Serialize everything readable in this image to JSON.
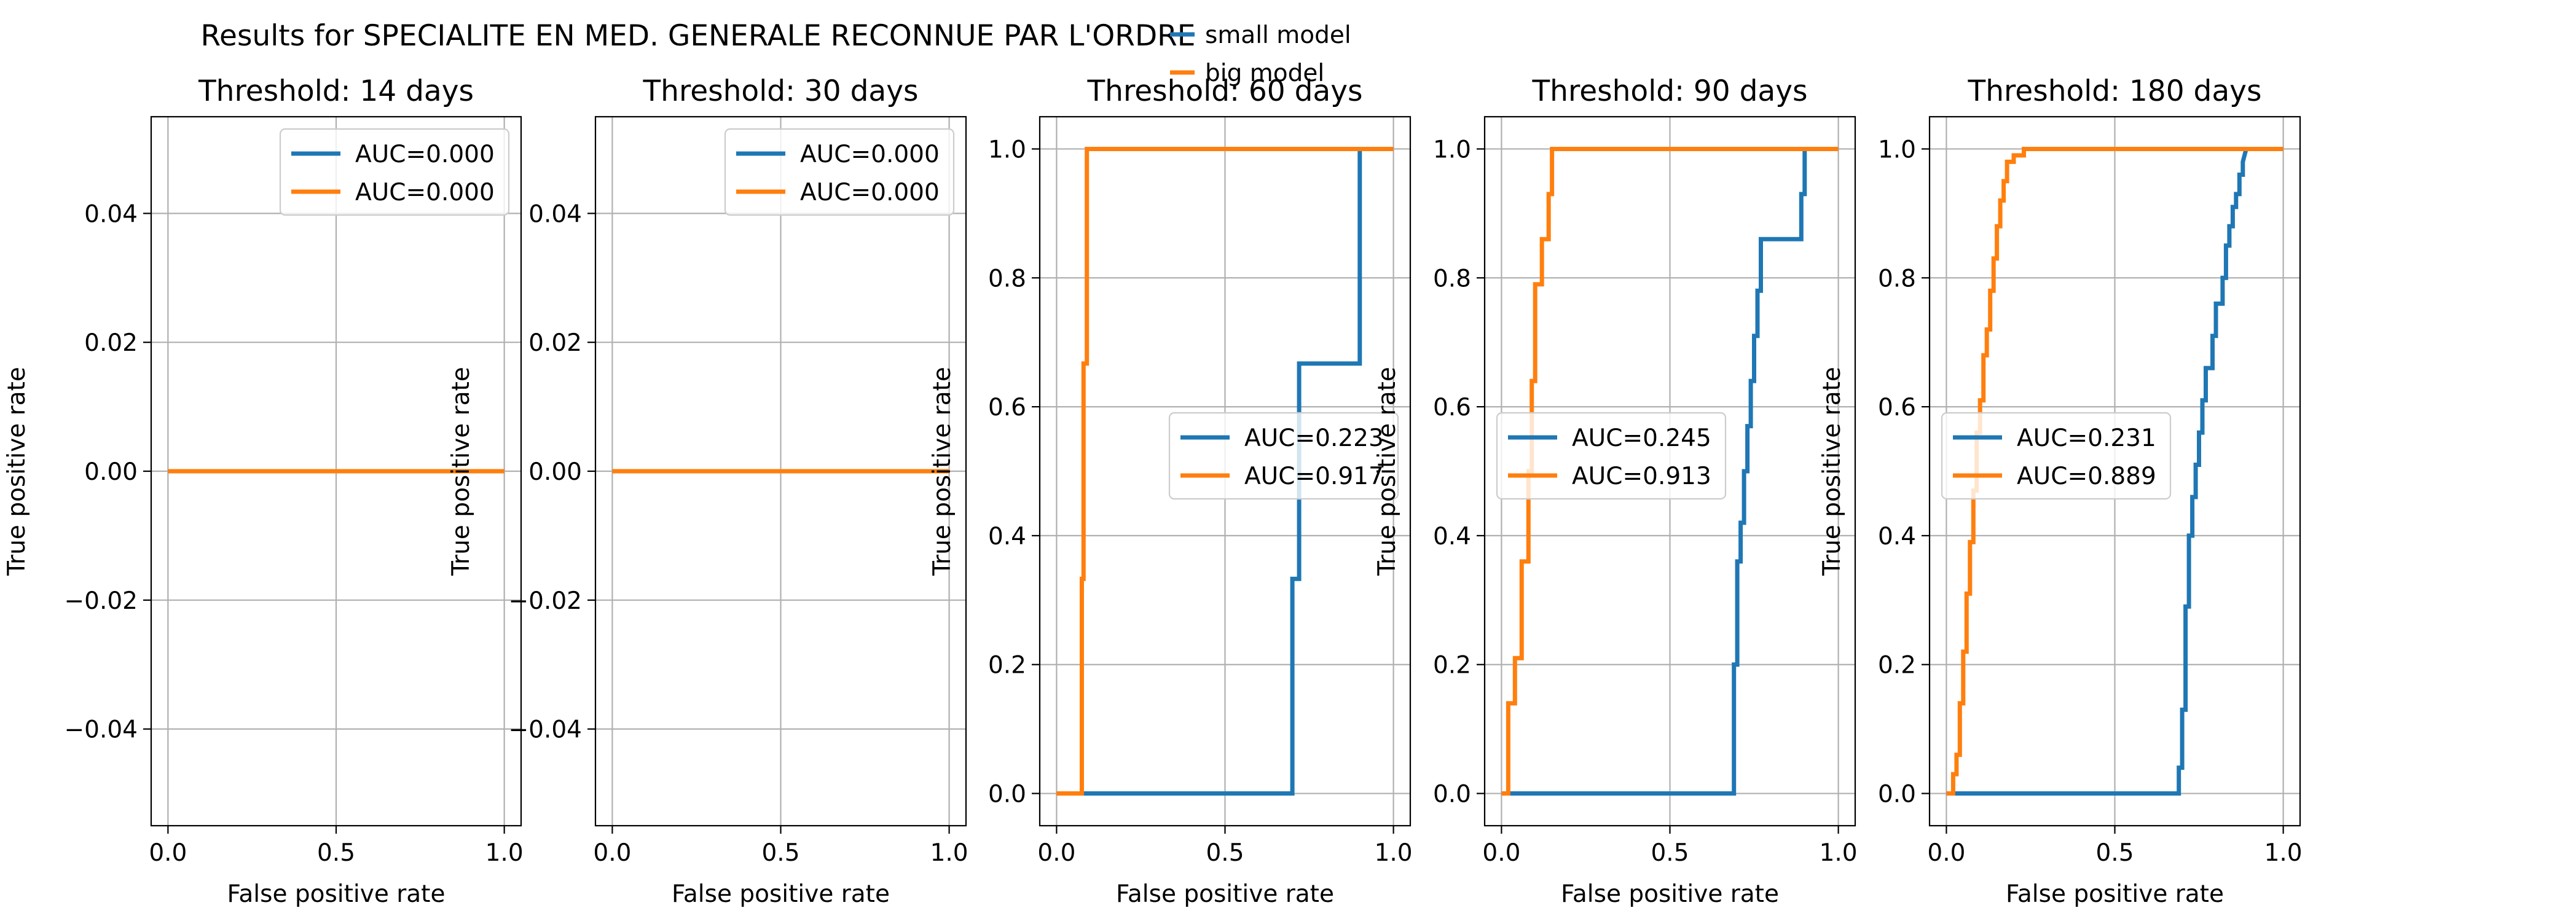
{
  "figure": {
    "suptitle": "Results for SPECIALITE EN MED. GENERALE RECONNUE PAR L'ORDRE",
    "legend": [
      {
        "name": "small model",
        "color": "#1f77b4"
      },
      {
        "name": "big model",
        "color": "#ff7f0e"
      }
    ]
  },
  "chart_data": [
    {
      "type": "line",
      "title": "Threshold: 14 days",
      "xlabel": "False positive rate",
      "ylabel": "True positive rate",
      "xlim": [
        -0.05,
        1.05
      ],
      "ylim": [
        -0.055,
        0.055
      ],
      "xticks": [
        0.0,
        0.5,
        1.0
      ],
      "xtick_labels": [
        "0.0",
        "0.5",
        "1.0"
      ],
      "yticks": [
        -0.04,
        -0.02,
        0.0,
        0.02,
        0.04
      ],
      "ytick_labels": [
        "−0.04",
        "−0.02",
        "0.00",
        "0.02",
        "0.04"
      ],
      "grid": true,
      "legend_position": "upper-right",
      "series": [
        {
          "name": "AUC=0.000",
          "color": "#1f77b4",
          "x": [
            0,
            1
          ],
          "y": [
            0,
            0
          ]
        },
        {
          "name": "AUC=0.000",
          "color": "#ff7f0e",
          "x": [
            0,
            1
          ],
          "y": [
            0,
            0
          ]
        }
      ]
    },
    {
      "type": "line",
      "title": "Threshold: 30 days",
      "xlabel": "False positive rate",
      "ylabel": "True positive rate",
      "xlim": [
        -0.05,
        1.05
      ],
      "ylim": [
        -0.055,
        0.055
      ],
      "xticks": [
        0.0,
        0.5,
        1.0
      ],
      "xtick_labels": [
        "0.0",
        "0.5",
        "1.0"
      ],
      "yticks": [
        -0.04,
        -0.02,
        0.0,
        0.02,
        0.04
      ],
      "ytick_labels": [
        "−0.04",
        "−0.02",
        "0.00",
        "0.02",
        "0.04"
      ],
      "grid": true,
      "legend_position": "upper-right",
      "series": [
        {
          "name": "AUC=0.000",
          "color": "#1f77b4",
          "x": [
            0,
            1
          ],
          "y": [
            0,
            0
          ]
        },
        {
          "name": "AUC=0.000",
          "color": "#ff7f0e",
          "x": [
            0,
            1
          ],
          "y": [
            0,
            0
          ]
        }
      ]
    },
    {
      "type": "line",
      "title": "Threshold: 60 days",
      "xlabel": "False positive rate",
      "ylabel": "True positive rate",
      "xlim": [
        -0.05,
        1.05
      ],
      "ylim": [
        -0.05,
        1.05
      ],
      "xticks": [
        0.0,
        0.5,
        1.0
      ],
      "xtick_labels": [
        "0.0",
        "0.5",
        "1.0"
      ],
      "yticks": [
        0.0,
        0.2,
        0.4,
        0.6,
        0.8,
        1.0
      ],
      "ytick_labels": [
        "0.0",
        "0.2",
        "0.4",
        "0.6",
        "0.8",
        "1.0"
      ],
      "grid": true,
      "legend_position": "center-right",
      "series": [
        {
          "name": "AUC=0.223",
          "color": "#1f77b4",
          "x": [
            0,
            0.7,
            0.7,
            0.72,
            0.72,
            0.9,
            0.9,
            1.0
          ],
          "y": [
            0,
            0,
            0.333,
            0.333,
            0.667,
            0.667,
            1.0,
            1.0
          ]
        },
        {
          "name": "AUC=0.917",
          "color": "#ff7f0e",
          "x": [
            0,
            0.075,
            0.075,
            0.08,
            0.08,
            0.09,
            0.09,
            1.0
          ],
          "y": [
            0,
            0,
            0.333,
            0.333,
            0.667,
            0.667,
            1.0,
            1.0
          ]
        }
      ]
    },
    {
      "type": "line",
      "title": "Threshold: 90 days",
      "xlabel": "False positive rate",
      "ylabel": "True positive rate",
      "xlim": [
        -0.05,
        1.05
      ],
      "ylim": [
        -0.05,
        1.05
      ],
      "xticks": [
        0.0,
        0.5,
        1.0
      ],
      "xtick_labels": [
        "0.0",
        "0.5",
        "1.0"
      ],
      "yticks": [
        0.0,
        0.2,
        0.4,
        0.6,
        0.8,
        1.0
      ],
      "ytick_labels": [
        "0.0",
        "0.2",
        "0.4",
        "0.6",
        "0.8",
        "1.0"
      ],
      "grid": true,
      "legend_position": "center-left",
      "series": [
        {
          "name": "AUC=0.245",
          "color": "#1f77b4",
          "x": [
            0,
            0.69,
            0.69,
            0.7,
            0.7,
            0.71,
            0.71,
            0.72,
            0.72,
            0.73,
            0.73,
            0.74,
            0.74,
            0.75,
            0.75,
            0.76,
            0.76,
            0.77,
            0.77,
            0.89,
            0.89,
            0.9,
            0.9,
            1.0
          ],
          "y": [
            0,
            0,
            0.2,
            0.2,
            0.36,
            0.36,
            0.42,
            0.42,
            0.5,
            0.5,
            0.57,
            0.57,
            0.64,
            0.64,
            0.71,
            0.71,
            0.78,
            0.78,
            0.86,
            0.86,
            0.93,
            0.93,
            1.0,
            1.0
          ]
        },
        {
          "name": "AUC=0.913",
          "color": "#ff7f0e",
          "x": [
            0,
            0.02,
            0.02,
            0.04,
            0.04,
            0.06,
            0.06,
            0.08,
            0.08,
            0.09,
            0.09,
            0.1,
            0.1,
            0.12,
            0.12,
            0.14,
            0.14,
            0.15,
            0.15,
            1.0
          ],
          "y": [
            0,
            0,
            0.14,
            0.14,
            0.21,
            0.21,
            0.36,
            0.36,
            0.5,
            0.5,
            0.64,
            0.64,
            0.79,
            0.79,
            0.86,
            0.86,
            0.93,
            0.93,
            1.0,
            1.0
          ]
        }
      ]
    },
    {
      "type": "line",
      "title": "Threshold: 180 days",
      "xlabel": "False positive rate",
      "ylabel": "True positive rate",
      "xlim": [
        -0.05,
        1.05
      ],
      "ylim": [
        -0.05,
        1.05
      ],
      "xticks": [
        0.0,
        0.5,
        1.0
      ],
      "xtick_labels": [
        "0.0",
        "0.5",
        "1.0"
      ],
      "yticks": [
        0.0,
        0.2,
        0.4,
        0.6,
        0.8,
        1.0
      ],
      "ytick_labels": [
        "0.0",
        "0.2",
        "0.4",
        "0.6",
        "0.8",
        "1.0"
      ],
      "grid": true,
      "legend_position": "center-left",
      "series": [
        {
          "name": "AUC=0.231",
          "color": "#1f77b4",
          "x": [
            0,
            0.69,
            0.69,
            0.7,
            0.7,
            0.71,
            0.71,
            0.72,
            0.72,
            0.73,
            0.73,
            0.74,
            0.74,
            0.75,
            0.75,
            0.76,
            0.76,
            0.77,
            0.77,
            0.79,
            0.79,
            0.8,
            0.8,
            0.82,
            0.82,
            0.83,
            0.83,
            0.84,
            0.84,
            0.85,
            0.85,
            0.86,
            0.86,
            0.87,
            0.87,
            0.88,
            0.88,
            0.89,
            1.0
          ],
          "y": [
            0,
            0,
            0.04,
            0.04,
            0.13,
            0.13,
            0.29,
            0.29,
            0.4,
            0.4,
            0.46,
            0.46,
            0.51,
            0.51,
            0.56,
            0.56,
            0.61,
            0.61,
            0.66,
            0.66,
            0.71,
            0.71,
            0.76,
            0.76,
            0.8,
            0.8,
            0.85,
            0.85,
            0.88,
            0.88,
            0.91,
            0.91,
            0.93,
            0.93,
            0.96,
            0.96,
            0.98,
            1.0,
            1.0
          ]
        },
        {
          "name": "AUC=0.889",
          "color": "#ff7f0e",
          "x": [
            0,
            0.02,
            0.02,
            0.03,
            0.03,
            0.04,
            0.04,
            0.05,
            0.05,
            0.06,
            0.06,
            0.07,
            0.07,
            0.08,
            0.08,
            0.09,
            0.09,
            0.1,
            0.1,
            0.11,
            0.11,
            0.12,
            0.12,
            0.13,
            0.13,
            0.14,
            0.14,
            0.15,
            0.15,
            0.16,
            0.16,
            0.17,
            0.17,
            0.18,
            0.18,
            0.2,
            0.2,
            0.23,
            0.23,
            1.0
          ],
          "y": [
            0,
            0,
            0.03,
            0.03,
            0.06,
            0.06,
            0.14,
            0.14,
            0.22,
            0.22,
            0.31,
            0.31,
            0.39,
            0.39,
            0.47,
            0.47,
            0.56,
            0.56,
            0.61,
            0.61,
            0.68,
            0.68,
            0.72,
            0.72,
            0.78,
            0.78,
            0.83,
            0.83,
            0.88,
            0.88,
            0.92,
            0.92,
            0.95,
            0.95,
            0.98,
            0.98,
            0.99,
            0.99,
            1.0,
            1.0
          ]
        }
      ]
    }
  ]
}
